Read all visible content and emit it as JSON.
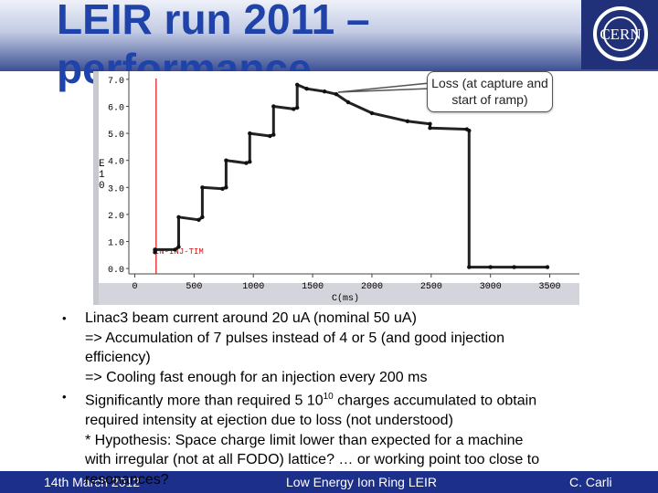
{
  "slide": {
    "title": "LEIR run 2011 – performance",
    "logo_text": "CERN",
    "callout": "Loss (at capture and start of ramp)",
    "bullets": [
      {
        "lines": [
          "Linac3 beam current around 20 uA (nominal 50 uA)",
          "=> Accumulation of 7 pulses instead of 4 or 5 (and good injection",
          "efficiency)",
          "=> Cooling fast enough for an injection every 200 ms"
        ]
      },
      {
        "lines": [
          "Significantly more than required 5 10",
          "charges accumulated to obtain",
          "required intensity at ejection due to loss (not understood)",
          "* Hypothesis: Space charge limit lower than expected for a machine",
          "with irregular (not at all FODO) lattice? … or working point too close to",
          "resonances?"
        ],
        "superscript": "10"
      }
    ],
    "footer": {
      "left": "14th March 2012",
      "center": "Low Energy Ion Ring LEIR",
      "right": "C. Carli"
    }
  },
  "chart_data": {
    "type": "line",
    "xlabel": "C(ms)",
    "ylabel": "E10",
    "xlim": [
      -50,
      3750
    ],
    "ylim": [
      -0.2,
      7.3
    ],
    "xticks": [
      "0",
      "500",
      "1000",
      "1500",
      "2000",
      "2500",
      "3000",
      "3500"
    ],
    "yticks": [
      "0.0",
      "1.0",
      "2.0",
      "3.0",
      "4.0",
      "5.0",
      "6.0",
      "7.0"
    ],
    "grid": false,
    "marker_label": "IN-INJ-TIM",
    "marker_x": 180,
    "series": [
      {
        "x": [
          170,
          170,
          340,
          370,
          370,
          540,
          570,
          570,
          740,
          770,
          770,
          940,
          970,
          970,
          1140,
          1170,
          1170,
          1340,
          1370,
          1370,
          1450,
          1600,
          1700,
          1800,
          2000,
          2300,
          2490,
          2490,
          2800,
          2820,
          2820,
          3000,
          3200,
          3480
        ],
        "y": [
          0.6,
          0.7,
          0.7,
          0.8,
          1.9,
          1.8,
          1.9,
          3.0,
          2.95,
          3.0,
          4.0,
          3.9,
          3.95,
          5.0,
          4.9,
          4.95,
          6.0,
          5.9,
          5.95,
          6.8,
          6.65,
          6.55,
          6.45,
          6.15,
          5.75,
          5.45,
          5.35,
          5.2,
          5.15,
          5.1,
          0.05,
          0.05,
          0.05,
          0.05
        ]
      }
    ]
  }
}
